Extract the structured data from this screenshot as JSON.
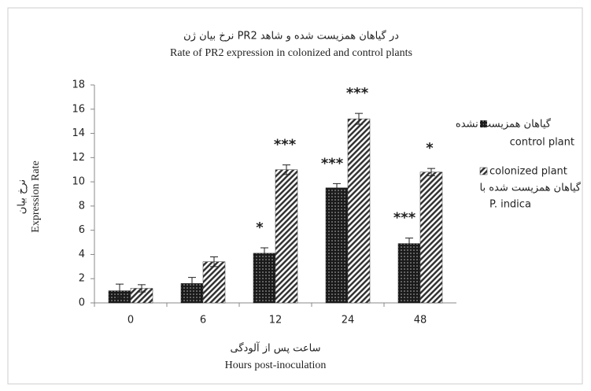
{
  "chart_data": {
    "type": "bar",
    "title_fa": "نرخ بیان ژن PR2 در گیاهان همزیست شده و شاهد",
    "title": "Rate of PR2 expression in colonized and control plants",
    "ylabel_fa": "نرخ بیان",
    "ylabel": "Expression Rate",
    "xlabel_fa": "ساعت پس از آلودگی",
    "xlabel": "Hours post-inoculation",
    "categories": [
      "0",
      "6",
      "12",
      "24",
      "48"
    ],
    "ylim": [
      0,
      18
    ],
    "yticks": [
      0,
      2,
      4,
      6,
      8,
      10,
      12,
      14,
      16,
      18
    ],
    "series": [
      {
        "name": "control plant",
        "name_fa": "گیاهان همزیست نشده",
        "color": "#1a1a1a",
        "values": [
          1.0,
          1.6,
          4.1,
          9.5,
          4.9
        ],
        "errors": [
          0.55,
          0.5,
          0.45,
          0.35,
          0.45
        ],
        "significance": [
          null,
          null,
          "*",
          "***",
          "***"
        ]
      },
      {
        "name": "colonized plant",
        "name_fa": "گیاهان همزیست شده با",
        "name_extra": "P. indica",
        "color": "#333333",
        "values": [
          1.2,
          3.4,
          11.0,
          15.2,
          10.8
        ],
        "errors": [
          0.3,
          0.4,
          0.4,
          0.45,
          0.3
        ],
        "significance": [
          null,
          null,
          "***",
          "***",
          "*"
        ]
      }
    ]
  }
}
